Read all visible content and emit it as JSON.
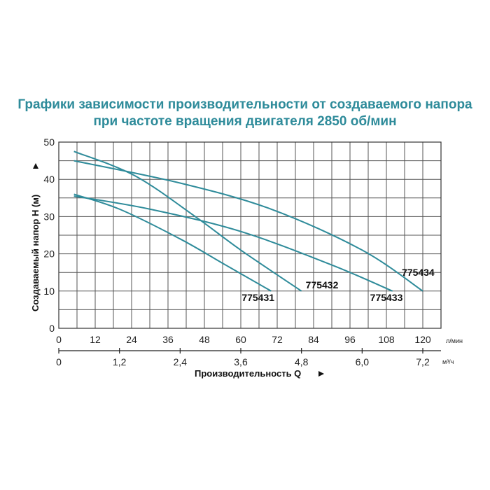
{
  "title_line1": "Графики зависимости производительности от создаваемого напора",
  "title_line2": "при частоте вращения двигателя 2850 об/мин",
  "chart_data": {
    "type": "line",
    "ylabel": "Создаваемый напор H (м)",
    "xlabel": "Производительность Q",
    "x_unit": "л/мин",
    "x2_unit": "м³/ч",
    "xlim": [
      0,
      126
    ],
    "ylim": [
      0,
      50
    ],
    "x_ticks": [
      0,
      12,
      24,
      36,
      48,
      60,
      72,
      84,
      96,
      108,
      120
    ],
    "x2_ticks": [
      "0",
      "1,2",
      "2,4",
      "3,6",
      "4,8",
      "6,0",
      "7,2"
    ],
    "y_ticks": [
      0,
      10,
      20,
      30,
      40,
      50
    ],
    "grid": true,
    "series": [
      {
        "name": "775431",
        "x": [
          5,
          20,
          40,
          55,
          70
        ],
        "y": [
          36,
          32,
          24,
          17,
          10
        ]
      },
      {
        "name": "775432",
        "x": [
          5,
          25,
          45,
          60,
          80
        ],
        "y": [
          47.5,
          41,
          30,
          21,
          10
        ]
      },
      {
        "name": "775433",
        "x": [
          5,
          30,
          60,
          90,
          110
        ],
        "y": [
          35.5,
          32,
          26,
          17,
          10
        ]
      },
      {
        "name": "775434",
        "x": [
          5,
          40,
          70,
          100,
          120
        ],
        "y": [
          45,
          39,
          32,
          21,
          10
        ]
      }
    ],
    "colors": {
      "curve": "#2e8b9a",
      "grid": "#555555",
      "title": "#2e8b9a"
    }
  }
}
